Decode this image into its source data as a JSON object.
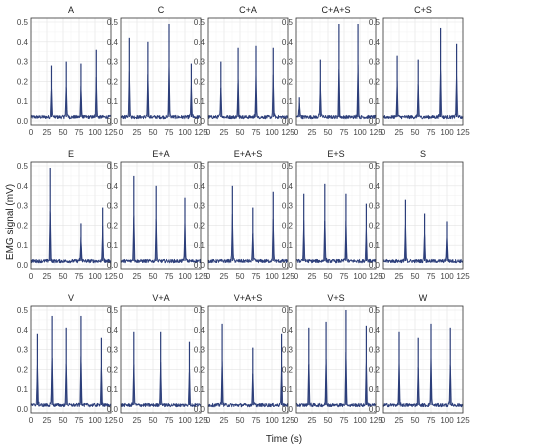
{
  "chart_data": {
    "type": "line",
    "layout": "facet grid, 3 rows x 5 columns",
    "xlabel": "Time (s)",
    "ylabel": "EMG signal (mV)",
    "xlim": [
      0,
      125
    ],
    "ylim": [
      0,
      0.5
    ],
    "x_ticks": [
      0,
      25,
      50,
      75,
      100,
      125
    ],
    "y_ticks": [
      0.0,
      0.1,
      0.2,
      0.3,
      0.4,
      0.5
    ],
    "y_tick_labels": [
      "0.0",
      "0.1",
      "0.2",
      "0.3",
      "0.4",
      "0.5"
    ],
    "grid": true,
    "line_color": "#2c3e7a",
    "baseline_level": 0.02,
    "panels": [
      {
        "title": "A",
        "spikes": [
          {
            "x": 32,
            "y": 0.28
          },
          {
            "x": 55,
            "y": 0.3
          },
          {
            "x": 78,
            "y": 0.29
          },
          {
            "x": 102,
            "y": 0.36
          }
        ]
      },
      {
        "title": "C",
        "spikes": [
          {
            "x": 13,
            "y": 0.42
          },
          {
            "x": 42,
            "y": 0.4
          },
          {
            "x": 75,
            "y": 0.49
          },
          {
            "x": 110,
            "y": 0.29
          }
        ]
      },
      {
        "title": "C+A",
        "spikes": [
          {
            "x": 20,
            "y": 0.3
          },
          {
            "x": 47,
            "y": 0.37
          },
          {
            "x": 75,
            "y": 0.38
          },
          {
            "x": 102,
            "y": 0.37
          }
        ]
      },
      {
        "title": "C+A+S",
        "spikes": [
          {
            "x": 5,
            "y": 0.12
          },
          {
            "x": 38,
            "y": 0.31
          },
          {
            "x": 67,
            "y": 0.49
          },
          {
            "x": 97,
            "y": 0.49
          }
        ]
      },
      {
        "title": "C+S",
        "spikes": [
          {
            "x": 22,
            "y": 0.33
          },
          {
            "x": 55,
            "y": 0.31
          },
          {
            "x": 90,
            "y": 0.47
          },
          {
            "x": 115,
            "y": 0.39
          }
        ]
      },
      {
        "title": "E",
        "spikes": [
          {
            "x": 30,
            "y": 0.49
          },
          {
            "x": 78,
            "y": 0.21
          },
          {
            "x": 112,
            "y": 0.29
          }
        ]
      },
      {
        "title": "E+A",
        "spikes": [
          {
            "x": 20,
            "y": 0.45
          },
          {
            "x": 55,
            "y": 0.4
          },
          {
            "x": 100,
            "y": 0.34
          }
        ]
      },
      {
        "title": "E+A+S",
        "spikes": [
          {
            "x": 38,
            "y": 0.4
          },
          {
            "x": 70,
            "y": 0.29
          },
          {
            "x": 102,
            "y": 0.37
          }
        ]
      },
      {
        "title": "E+S",
        "spikes": [
          {
            "x": 12,
            "y": 0.36
          },
          {
            "x": 45,
            "y": 0.41
          },
          {
            "x": 78,
            "y": 0.36
          },
          {
            "x": 110,
            "y": 0.31
          }
        ]
      },
      {
        "title": "S",
        "spikes": [
          {
            "x": 35,
            "y": 0.33
          },
          {
            "x": 65,
            "y": 0.26
          },
          {
            "x": 100,
            "y": 0.22
          }
        ]
      },
      {
        "title": "V",
        "spikes": [
          {
            "x": 10,
            "y": 0.38
          },
          {
            "x": 33,
            "y": 0.47
          },
          {
            "x": 55,
            "y": 0.41
          },
          {
            "x": 78,
            "y": 0.47
          },
          {
            "x": 110,
            "y": 0.36
          }
        ]
      },
      {
        "title": "V+A",
        "spikes": [
          {
            "x": 20,
            "y": 0.39
          },
          {
            "x": 62,
            "y": 0.39
          },
          {
            "x": 107,
            "y": 0.34
          }
        ]
      },
      {
        "title": "V+A+S",
        "spikes": [
          {
            "x": 22,
            "y": 0.43
          },
          {
            "x": 70,
            "y": 0.31
          },
          {
            "x": 115,
            "y": 0.38
          }
        ]
      },
      {
        "title": "V+S",
        "spikes": [
          {
            "x": 20,
            "y": 0.41
          },
          {
            "x": 47,
            "y": 0.44
          },
          {
            "x": 78,
            "y": 0.5
          },
          {
            "x": 110,
            "y": 0.42
          }
        ]
      },
      {
        "title": "W",
        "spikes": [
          {
            "x": 25,
            "y": 0.39
          },
          {
            "x": 55,
            "y": 0.36
          },
          {
            "x": 75,
            "y": 0.43
          },
          {
            "x": 105,
            "y": 0.41
          }
        ]
      }
    ]
  }
}
